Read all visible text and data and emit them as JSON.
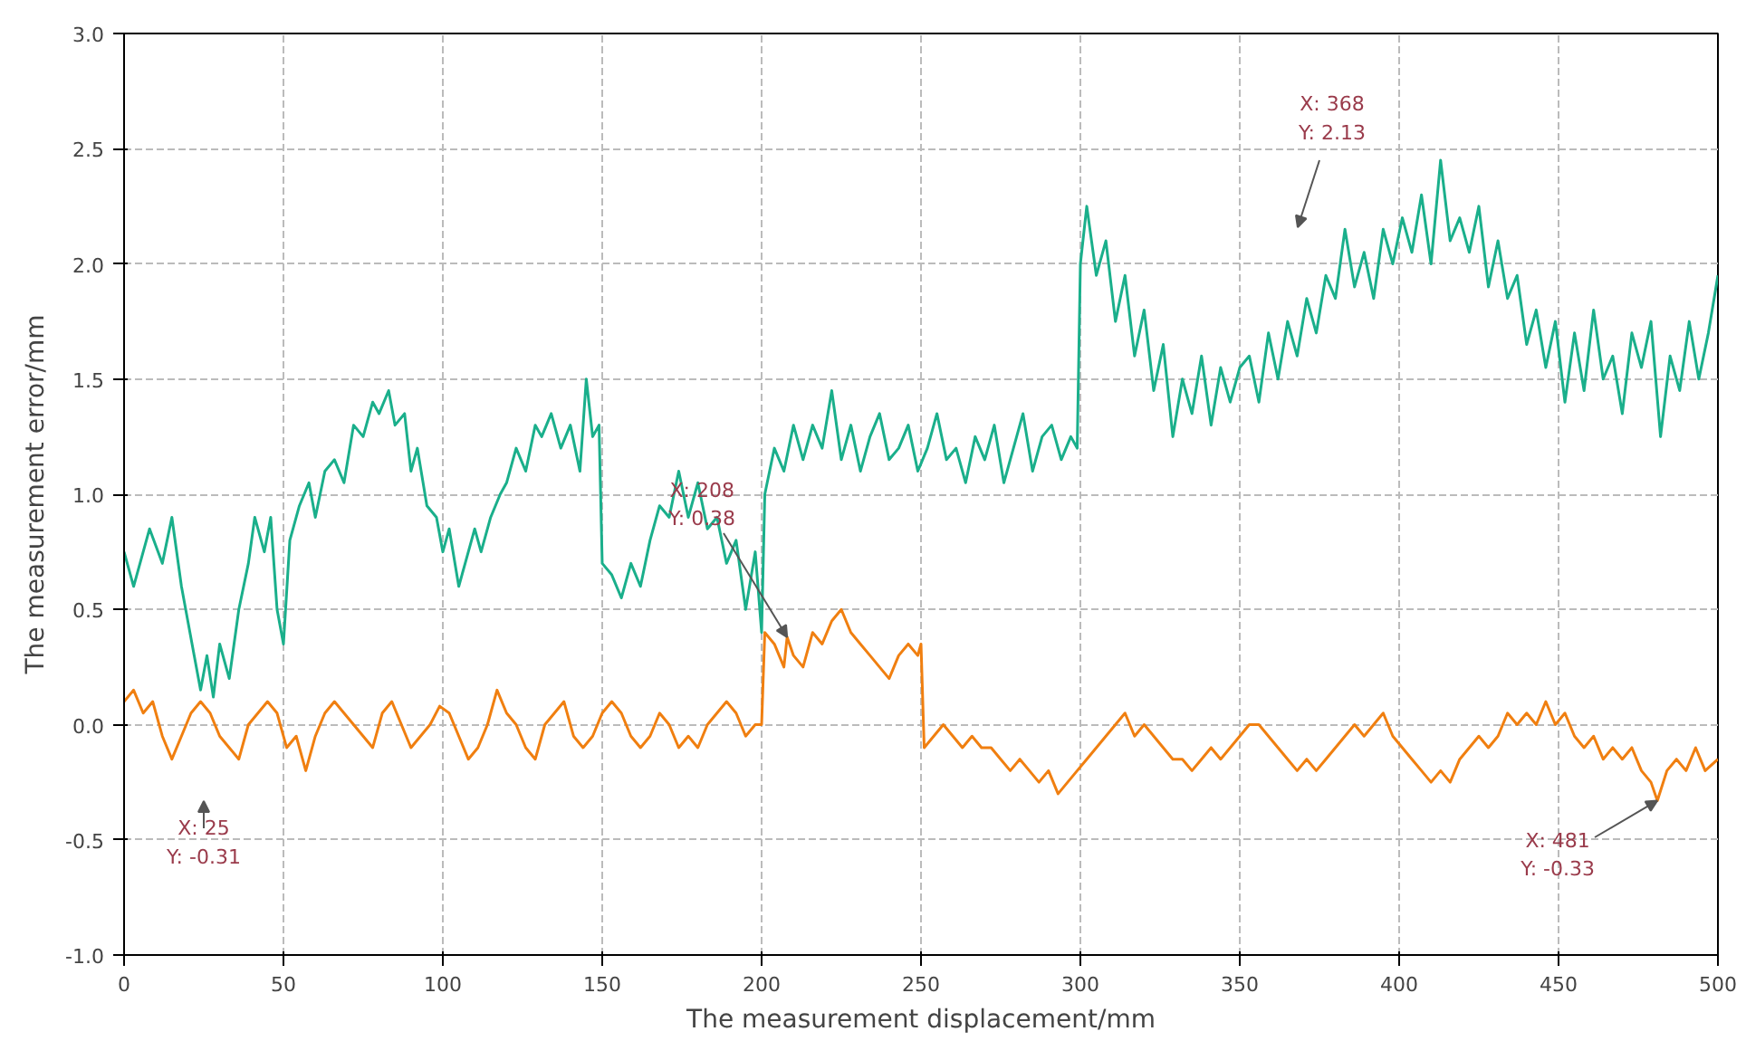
{
  "chart_data": {
    "type": "line",
    "xlabel": "The measurement displacement/mm",
    "ylabel": "The measurement error/mm",
    "xlim": [
      0,
      500
    ],
    "xticks": [
      0,
      50,
      100,
      150,
      200,
      250,
      300,
      350,
      400,
      450,
      500
    ],
    "ylim": [
      -1,
      3
    ],
    "yticks": [
      {
        "value": -1,
        "label": "-1.0"
      },
      {
        "value": -0.5,
        "label": "-0.5"
      },
      {
        "value": 0,
        "label": "0.0"
      },
      {
        "value": 0.5,
        "label": "0.5"
      },
      {
        "value": 1,
        "label": "1.0"
      },
      {
        "value": 1.5,
        "label": "1.5"
      },
      {
        "value": 2,
        "label": "2.0"
      },
      {
        "value": 2.5,
        "label": "2.5"
      },
      {
        "value": 3,
        "label": "3.0"
      }
    ],
    "grid": true,
    "line_style": "solid",
    "annotations": [
      "X: 25\nY: -0.31",
      {
        "text": "X: 208\nY: 0.38",
        "x": 208,
        "y": 0.38
      },
      "X: 368\nY: 2.13",
      {
        "text": "X: 481\nY: -0.33",
        "x": 481,
        "y": -0.33
      }
    ],
    "series": [
      {
        "color": "#1aaf8b",
        "x": [
          0,
          3,
          8,
          12,
          15,
          18,
          20,
          22,
          24,
          26,
          28,
          30,
          33,
          36,
          39,
          41,
          44,
          46,
          48,
          50,
          52,
          55,
          58,
          60,
          63,
          66,
          69,
          72,
          75,
          78,
          80,
          83,
          85,
          88,
          90,
          92,
          95,
          98,
          100,
          102,
          105,
          107,
          110,
          112,
          115,
          118,
          120,
          123,
          126,
          129,
          131,
          134,
          137,
          140,
          143,
          145,
          147,
          149,
          150,
          153,
          156,
          159,
          162,
          165,
          168,
          171,
          174,
          177,
          180,
          183,
          186,
          189,
          192,
          195,
          198,
          200,
          201,
          204,
          207,
          210,
          213,
          216,
          219,
          222,
          225,
          228,
          231,
          234,
          237,
          240,
          243,
          246,
          249,
          252,
          255,
          258,
          261,
          264,
          267,
          270,
          273,
          276,
          279,
          282,
          285,
          288,
          291,
          294,
          297,
          299,
          300,
          302,
          305,
          308,
          311,
          314,
          317,
          320,
          323,
          326,
          329,
          332,
          335,
          338,
          341,
          344,
          347,
          350,
          353,
          356,
          359,
          362,
          365,
          368,
          371,
          374,
          377,
          380,
          383,
          386,
          389,
          392,
          395,
          398,
          401,
          404,
          407,
          410,
          413,
          416,
          419,
          422,
          425,
          428,
          431,
          434,
          437,
          440,
          443,
          446,
          449,
          452,
          455,
          458,
          461,
          464,
          467,
          470,
          473,
          476,
          479,
          482,
          485,
          488,
          491,
          494,
          497,
          500
        ],
        "values": [
          0.75,
          0.6,
          0.85,
          0.7,
          0.9,
          0.6,
          0.45,
          0.3,
          0.15,
          0.3,
          0.12,
          0.35,
          0.2,
          0.5,
          0.7,
          0.9,
          0.75,
          0.9,
          0.5,
          0.35,
          0.8,
          0.95,
          1.05,
          0.9,
          1.1,
          1.15,
          1.05,
          1.3,
          1.25,
          1.4,
          1.35,
          1.45,
          1.3,
          1.35,
          1.1,
          1.2,
          0.95,
          0.9,
          0.75,
          0.85,
          0.6,
          0.7,
          0.85,
          0.75,
          0.9,
          1.0,
          1.05,
          1.2,
          1.1,
          1.3,
          1.25,
          1.35,
          1.2,
          1.3,
          1.1,
          1.5,
          1.25,
          1.3,
          0.7,
          0.65,
          0.55,
          0.7,
          0.6,
          0.8,
          0.95,
          0.9,
          1.1,
          0.9,
          1.05,
          0.85,
          0.9,
          0.7,
          0.8,
          0.5,
          0.75,
          0.4,
          1.0,
          1.2,
          1.1,
          1.3,
          1.15,
          1.3,
          1.2,
          1.45,
          1.15,
          1.3,
          1.1,
          1.25,
          1.35,
          1.15,
          1.2,
          1.3,
          1.1,
          1.2,
          1.35,
          1.15,
          1.2,
          1.05,
          1.25,
          1.15,
          1.3,
          1.05,
          1.2,
          1.35,
          1.1,
          1.25,
          1.3,
          1.15,
          1.25,
          1.2,
          2.0,
          2.25,
          1.95,
          2.1,
          1.75,
          1.95,
          1.6,
          1.8,
          1.45,
          1.65,
          1.25,
          1.5,
          1.35,
          1.6,
          1.3,
          1.55,
          1.4,
          1.55,
          1.6,
          1.4,
          1.7,
          1.5,
          1.75,
          1.6,
          1.85,
          1.7,
          1.95,
          1.85,
          2.15,
          1.9,
          2.05,
          1.85,
          2.15,
          2.0,
          2.2,
          2.05,
          2.3,
          2.0,
          2.45,
          2.1,
          2.2,
          2.05,
          2.25,
          1.9,
          2.1,
          1.85,
          1.95,
          1.65,
          1.8,
          1.55,
          1.75,
          1.4,
          1.7,
          1.45,
          1.8,
          1.5,
          1.6,
          1.35,
          1.7,
          1.55,
          1.75,
          1.25,
          1.6,
          1.45,
          1.75,
          1.5,
          1.7,
          1.95
        ]
      },
      {
        "color": "#f07f10",
        "x": [
          0,
          3,
          6,
          9,
          12,
          15,
          18,
          21,
          24,
          27,
          30,
          33,
          36,
          39,
          42,
          45,
          48,
          51,
          54,
          57,
          60,
          63,
          66,
          69,
          72,
          75,
          78,
          81,
          84,
          87,
          90,
          93,
          96,
          99,
          102,
          105,
          108,
          111,
          114,
          117,
          120,
          123,
          126,
          129,
          132,
          135,
          138,
          141,
          144,
          147,
          150,
          153,
          156,
          159,
          162,
          165,
          168,
          171,
          174,
          177,
          180,
          183,
          186,
          189,
          192,
          195,
          198,
          200,
          201,
          204,
          207,
          208,
          210,
          213,
          216,
          219,
          222,
          225,
          228,
          231,
          234,
          237,
          240,
          243,
          246,
          249,
          250,
          251,
          254,
          257,
          260,
          263,
          266,
          269,
          272,
          275,
          278,
          281,
          284,
          287,
          290,
          293,
          296,
          299,
          302,
          305,
          308,
          311,
          314,
          317,
          320,
          323,
          326,
          329,
          332,
          335,
          338,
          341,
          344,
          347,
          350,
          353,
          356,
          359,
          362,
          365,
          368,
          371,
          374,
          377,
          380,
          383,
          386,
          389,
          392,
          395,
          398,
          401,
          404,
          407,
          410,
          413,
          416,
          419,
          422,
          425,
          428,
          431,
          434,
          437,
          440,
          443,
          446,
          449,
          452,
          455,
          458,
          461,
          464,
          467,
          470,
          473,
          476,
          479,
          481,
          484,
          487,
          490,
          493,
          496,
          500
        ],
        "values": [
          0.1,
          0.15,
          0.05,
          0.1,
          -0.05,
          -0.15,
          -0.05,
          0.05,
          0.1,
          0.05,
          -0.05,
          -0.1,
          -0.15,
          0.0,
          0.05,
          0.1,
          0.05,
          -0.1,
          -0.05,
          -0.2,
          -0.05,
          0.05,
          0.1,
          0.05,
          0.0,
          -0.05,
          -0.1,
          0.05,
          0.1,
          0.0,
          -0.1,
          -0.05,
          0.0,
          0.08,
          0.05,
          -0.05,
          -0.15,
          -0.1,
          0.0,
          0.15,
          0.05,
          0.0,
          -0.1,
          -0.15,
          0.0,
          0.05,
          0.1,
          -0.05,
          -0.1,
          -0.05,
          0.05,
          0.1,
          0.05,
          -0.05,
          -0.1,
          -0.05,
          0.05,
          0.0,
          -0.1,
          -0.05,
          -0.1,
          0.0,
          0.05,
          0.1,
          0.05,
          -0.05,
          0.0,
          0.0,
          0.4,
          0.35,
          0.25,
          0.38,
          0.3,
          0.25,
          0.4,
          0.35,
          0.45,
          0.5,
          0.4,
          0.35,
          0.3,
          0.25,
          0.2,
          0.3,
          0.35,
          0.3,
          0.35,
          -0.1,
          -0.05,
          0.0,
          -0.05,
          -0.1,
          -0.05,
          -0.1,
          -0.1,
          -0.15,
          -0.2,
          -0.15,
          -0.2,
          -0.25,
          -0.2,
          -0.3,
          -0.25,
          -0.2,
          -0.15,
          -0.1,
          -0.05,
          0.0,
          0.05,
          -0.05,
          0.0,
          -0.05,
          -0.1,
          -0.15,
          -0.15,
          -0.2,
          -0.15,
          -0.1,
          -0.15,
          -0.1,
          -0.05,
          0.0,
          0.0,
          -0.05,
          -0.1,
          -0.15,
          -0.2,
          -0.15,
          -0.2,
          -0.15,
          -0.1,
          -0.05,
          0.0,
          -0.05,
          0.0,
          0.05,
          -0.05,
          -0.1,
          -0.15,
          -0.2,
          -0.25,
          -0.2,
          -0.25,
          -0.15,
          -0.1,
          -0.05,
          -0.1,
          -0.05,
          0.05,
          0.0,
          0.05,
          0.0,
          0.1,
          0.0,
          0.05,
          -0.05,
          -0.1,
          -0.05,
          -0.15,
          -0.1,
          -0.15,
          -0.1,
          -0.2,
          -0.25,
          -0.33,
          -0.2,
          -0.15,
          -0.2,
          -0.1,
          -0.2,
          -0.15
        ]
      }
    ]
  }
}
